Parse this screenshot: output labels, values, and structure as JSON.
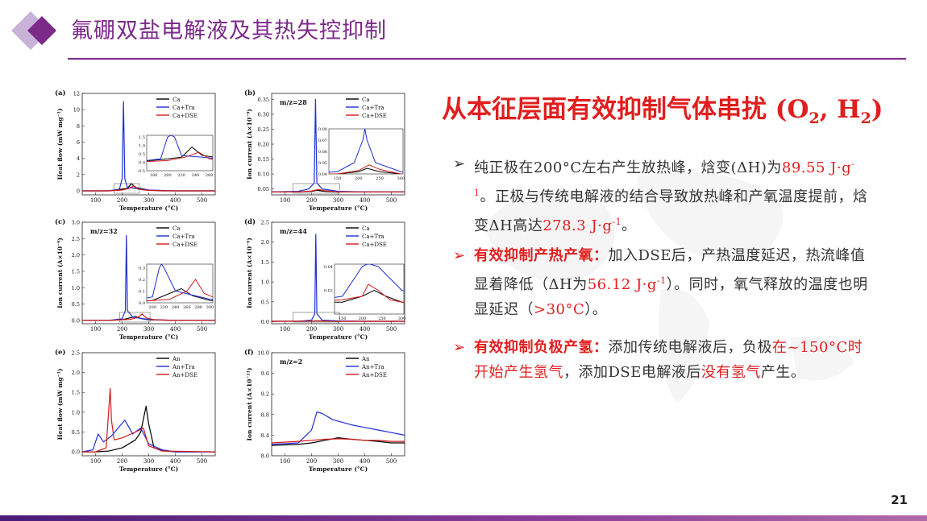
{
  "header": {
    "title": "氟硼双盐电解液及其热失控抑制"
  },
  "page_number": "21",
  "headline": {
    "text": "从本征层面有效抑制气体串扰 (O",
    "sub1": "2",
    "mid": ", H",
    "sub2": "2",
    "end": ")"
  },
  "bullets": [
    {
      "parts": [
        {
          "t": "纯正极在200°C左右产生放热峰，焓变(ΔH)为",
          "c": "n"
        },
        {
          "t": "89.55 J·g",
          "c": "r"
        },
        {
          "t": "-1",
          "c": "rs"
        },
        {
          "t": "。正极与传统电解液的结合导致放热峰和产氧温度提前，焓变ΔH高达",
          "c": "n"
        },
        {
          "t": "278.3 J·g",
          "c": "r"
        },
        {
          "t": "-1",
          "c": "rs"
        },
        {
          "t": "。",
          "c": "n"
        }
      ]
    },
    {
      "parts": [
        {
          "t": "有效抑制产热产氧：",
          "c": "rb"
        },
        {
          "t": "加入DSE后，产热温度延迟，热流峰值显着降低（ΔH为",
          "c": "n"
        },
        {
          "t": "56.12 J·g",
          "c": "r"
        },
        {
          "t": "-1",
          "c": "rs"
        },
        {
          "t": "）。同时，氧气释放的温度也明显延迟（",
          "c": "n"
        },
        {
          "t": ">30°C",
          "c": "r"
        },
        {
          "t": "）。",
          "c": "n"
        }
      ]
    },
    {
      "parts": [
        {
          "t": "有效抑制负极产氢：",
          "c": "rb"
        },
        {
          "t": "添加传统电解液后，负极",
          "c": "n"
        },
        {
          "t": "在~150°C时开始产生氢气",
          "c": "r"
        },
        {
          "t": "，添加DSE电解液后",
          "c": "n"
        },
        {
          "t": "没有氢气",
          "c": "r"
        },
        {
          "t": "产生。",
          "c": "n"
        }
      ]
    }
  ],
  "colors": {
    "accent": "#7b2a8a",
    "red": "#e11e1e",
    "black_series": "#000000",
    "blue_series": "#1f2ed6",
    "red_series": "#d41a1a"
  },
  "chart_data": [
    {
      "type": "line",
      "panel": "(a)",
      "ylabel": "Heat flow (mW mg⁻¹)",
      "xlabel": "Temperature (°C)",
      "xlim": [
        50,
        550
      ],
      "ylim": [
        -0.5,
        12
      ],
      "xticks": [
        "100",
        "200",
        "300",
        "400",
        "500"
      ],
      "yticks": [
        "0",
        "2",
        "4",
        "6",
        "8",
        "10",
        "12"
      ],
      "annotation": "",
      "series": [
        {
          "name": "Ca",
          "color": "#000000",
          "x": [
            50,
            150,
            200,
            220,
            235,
            250,
            300,
            350,
            400,
            450,
            500,
            550
          ],
          "y": [
            0,
            0,
            0.2,
            0.3,
            0.9,
            0.4,
            0.1,
            0,
            0,
            0,
            0,
            0
          ]
        },
        {
          "name": "Ca+Tra",
          "color": "#1f2ed6",
          "x": [
            50,
            150,
            190,
            200,
            205,
            210,
            220,
            250,
            300,
            400,
            550
          ],
          "y": [
            0,
            0,
            0.2,
            1.5,
            11,
            1.5,
            0.4,
            0.3,
            0.1,
            0,
            0
          ]
        },
        {
          "name": "Ca+DSE",
          "color": "#d41a1a",
          "x": [
            50,
            150,
            200,
            225,
            245,
            260,
            300,
            400,
            550
          ],
          "y": [
            0,
            0,
            0.1,
            0.3,
            0.6,
            0.2,
            0.05,
            0,
            0
          ]
        }
      ],
      "inset": {
        "xticks": [
          "180",
          "200",
          "220",
          "240",
          "260"
        ],
        "yticks": [
          "-0.5",
          "0.0",
          "0.5",
          "1.0",
          "1.5"
        ],
        "xlim": [
          170,
          265
        ],
        "ylim": [
          -0.5,
          1.6
        ]
      }
    },
    {
      "type": "line",
      "panel": "(b)",
      "ylabel": "Ion current (A×10⁻⁹)",
      "xlabel": "Temperature (°C)",
      "xlim": [
        50,
        550
      ],
      "ylim": [
        0.03,
        0.37
      ],
      "xticks": [
        "100",
        "200",
        "300",
        "400",
        "500"
      ],
      "yticks": [
        "0.05",
        "0.10",
        "0.15",
        "0.20",
        "0.25",
        "0.30",
        "0.35"
      ],
      "annotation": "m/z=28",
      "series": [
        {
          "name": "Ca",
          "color": "#000000",
          "x": [
            50,
            150,
            200,
            220,
            250,
            300,
            400,
            550
          ],
          "y": [
            0.04,
            0.04,
            0.042,
            0.045,
            0.042,
            0.04,
            0.04,
            0.04
          ]
        },
        {
          "name": "Ca+Tra",
          "color": "#1f2ed6",
          "x": [
            50,
            150,
            190,
            210,
            215,
            220,
            240,
            300,
            400,
            550
          ],
          "y": [
            0.04,
            0.042,
            0.05,
            0.07,
            0.35,
            0.07,
            0.05,
            0.042,
            0.04,
            0.04
          ]
        },
        {
          "name": "Ca+DSE",
          "color": "#d41a1a",
          "x": [
            50,
            150,
            200,
            225,
            250,
            300,
            400,
            550
          ],
          "y": [
            0.04,
            0.04,
            0.043,
            0.048,
            0.044,
            0.04,
            0.04,
            0.04
          ]
        }
      ],
      "inset": {
        "xticks": [
          "150",
          "200",
          "250",
          "300"
        ],
        "yticks": [
          "0.04",
          "0.05",
          "0.06",
          "0.07",
          "0.08"
        ],
        "xlim": [
          130,
          305
        ],
        "ylim": [
          0.04,
          0.08
        ]
      }
    },
    {
      "type": "line",
      "panel": "(c)",
      "ylabel": "Ion current (A×10⁻⁹)",
      "xlabel": "Temperature (°C)",
      "xlim": [
        50,
        550
      ],
      "ylim": [
        -0.1,
        3.0
      ],
      "xticks": [
        "100",
        "200",
        "300",
        "400",
        "500"
      ],
      "yticks": [
        "0.0",
        "0.5",
        "1.0",
        "1.5",
        "2.0",
        "2.5",
        "3.0"
      ],
      "annotation": "m/z=32",
      "series": [
        {
          "name": "Ca",
          "color": "#000000",
          "x": [
            50,
            150,
            200,
            230,
            250,
            270,
            300,
            400,
            550
          ],
          "y": [
            0,
            0,
            0.02,
            0.08,
            0.12,
            0.06,
            0.02,
            0,
            0
          ]
        },
        {
          "name": "Ca+Tra",
          "color": "#1f2ed6",
          "x": [
            50,
            150,
            200,
            212,
            216,
            220,
            240,
            300,
            400,
            550
          ],
          "y": [
            0,
            0,
            0.05,
            0.3,
            2.6,
            0.3,
            0.1,
            0.03,
            0,
            0
          ]
        },
        {
          "name": "Ca+DSE",
          "color": "#d41a1a",
          "x": [
            50,
            150,
            230,
            260,
            275,
            290,
            320,
            400,
            550
          ],
          "y": [
            0,
            0,
            0.03,
            0.1,
            0.2,
            0.08,
            0.02,
            0,
            0
          ]
        }
      ],
      "inset": {
        "xticks": [
          "200",
          "220",
          "240",
          "260",
          "280",
          "300"
        ],
        "yticks": [
          "0.0",
          "0.1",
          "0.2",
          "0.3"
        ],
        "xlim": [
          190,
          305
        ],
        "ylim": [
          0,
          0.33
        ]
      }
    },
    {
      "type": "line",
      "panel": "(d)",
      "ylabel": "Ion current (A×10⁻⁹)",
      "xlabel": "Temperature (°C)",
      "xlim": [
        50,
        550
      ],
      "ylim": [
        -0.05,
        2.5
      ],
      "xticks": [
        "100",
        "200",
        "300",
        "400",
        "500"
      ],
      "yticks": [
        "0.0",
        "0.5",
        "1.0",
        "1.5",
        "2.0",
        "2.5"
      ],
      "annotation": "m/z=44",
      "series": [
        {
          "name": "Ca",
          "color": "#000000",
          "x": [
            50,
            150,
            200,
            230,
            260,
            300,
            400,
            550
          ],
          "y": [
            0.01,
            0.01,
            0.015,
            0.02,
            0.015,
            0.01,
            0.01,
            0.01
          ]
        },
        {
          "name": "Ca+Tra",
          "color": "#1f2ed6",
          "x": [
            50,
            150,
            200,
            212,
            216,
            220,
            240,
            300,
            400,
            550
          ],
          "y": [
            0.01,
            0.015,
            0.04,
            0.2,
            2.2,
            0.2,
            0.04,
            0.02,
            0.01,
            0.01
          ]
        },
        {
          "name": "Ca+DSE",
          "color": "#d41a1a",
          "x": [
            50,
            150,
            200,
            215,
            240,
            270,
            300,
            400,
            550
          ],
          "y": [
            0.01,
            0.012,
            0.015,
            0.025,
            0.02,
            0.012,
            0.01,
            0.01,
            0.01
          ]
        }
      ],
      "inset": {
        "xticks": [
          "150",
          "200",
          "250",
          "300"
        ],
        "yticks": [
          "0.02",
          "0.04"
        ],
        "xlim": [
          130,
          305
        ],
        "ylim": [
          0,
          0.042
        ]
      }
    },
    {
      "type": "line",
      "panel": "(e)",
      "ylabel": "Heat flow (mW mg⁻¹)",
      "xlabel": "Temperature (°C)",
      "xlim": [
        50,
        550
      ],
      "ylim": [
        -0.1,
        2.5
      ],
      "xticks": [
        "100",
        "200",
        "300",
        "400",
        "500"
      ],
      "yticks": [
        "0.0",
        "0.5",
        "1.0",
        "1.5",
        "2.0",
        "2.5"
      ],
      "annotation": "",
      "series": [
        {
          "name": "An",
          "color": "#000000",
          "x": [
            50,
            100,
            150,
            200,
            250,
            270,
            290,
            300,
            320,
            350,
            400,
            550
          ],
          "y": [
            0,
            0,
            0.02,
            0.1,
            0.3,
            0.5,
            1.15,
            0.7,
            0.1,
            0.03,
            0,
            0
          ]
        },
        {
          "name": "An+Tra",
          "color": "#1f2ed6",
          "x": [
            50,
            90,
            110,
            130,
            160,
            210,
            240,
            270,
            300,
            350,
            400,
            550
          ],
          "y": [
            0,
            0.05,
            0.45,
            0.25,
            0.4,
            0.8,
            0.45,
            0.6,
            0.2,
            0.05,
            0,
            0
          ]
        },
        {
          "name": "An+DSE",
          "color": "#d41a1a",
          "x": [
            50,
            100,
            140,
            155,
            160,
            170,
            200,
            250,
            280,
            300,
            350,
            550
          ],
          "y": [
            0,
            0,
            0.1,
            1.6,
            0.8,
            0.3,
            0.35,
            0.5,
            0.6,
            0.15,
            0.02,
            0
          ]
        }
      ]
    },
    {
      "type": "line",
      "panel": "(f)",
      "ylabel": "Ion current (A×10⁻¹¹)",
      "xlabel": "Temperature (°C)",
      "xlim": [
        50,
        550
      ],
      "ylim": [
        8.0,
        10.0
      ],
      "xticks": [
        "100",
        "200",
        "300",
        "400",
        "500"
      ],
      "yticks": [
        "8.0",
        "8.4",
        "8.8",
        "9.2",
        "9.6",
        "10.0"
      ],
      "annotation": "m/z=2",
      "series": [
        {
          "name": "An",
          "color": "#000000",
          "x": [
            50,
            150,
            200,
            250,
            300,
            350,
            400,
            450,
            500,
            550
          ],
          "y": [
            8.2,
            8.22,
            8.25,
            8.3,
            8.35,
            8.32,
            8.3,
            8.28,
            8.25,
            8.25
          ]
        },
        {
          "name": "An+Tra",
          "color": "#1f2ed6",
          "x": [
            50,
            150,
            200,
            220,
            240,
            280,
            350,
            400,
            450,
            500,
            550
          ],
          "y": [
            8.22,
            8.25,
            8.5,
            8.85,
            8.82,
            8.7,
            8.6,
            8.55,
            8.5,
            8.45,
            8.4
          ]
        },
        {
          "name": "An+DSE",
          "color": "#d41a1a",
          "x": [
            50,
            150,
            200,
            250,
            300,
            350,
            400,
            450,
            500,
            550
          ],
          "y": [
            8.25,
            8.28,
            8.3,
            8.32,
            8.33,
            8.32,
            8.3,
            8.3,
            8.28,
            8.28
          ]
        }
      ]
    }
  ]
}
